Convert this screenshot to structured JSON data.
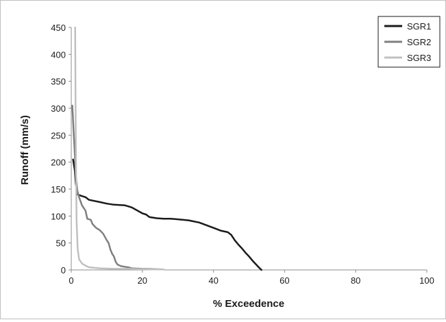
{
  "chart_data": {
    "type": "line",
    "title": "",
    "xlabel": "% Exceedence",
    "ylabel": "Runoff (mm/s)",
    "xlim": [
      0,
      100
    ],
    "ylim": [
      0,
      450
    ],
    "x_ticks": [
      "0",
      "20",
      "40",
      "60",
      "80",
      "100"
    ],
    "y_ticks": [
      "0",
      "50",
      "100",
      "150",
      "200",
      "250",
      "300",
      "350",
      "400",
      "450"
    ],
    "grid": false,
    "legend_position": "top-right",
    "series": [
      {
        "name": "SGR1",
        "color": "#1a1a1a",
        "points": [
          [
            0.5,
            205
          ],
          [
            1,
            185
          ],
          [
            1.3,
            160
          ],
          [
            1.8,
            140
          ],
          [
            3,
            137
          ],
          [
            4,
            135
          ],
          [
            5,
            130
          ],
          [
            8,
            126
          ],
          [
            10,
            123
          ],
          [
            12,
            121
          ],
          [
            15,
            120
          ],
          [
            17,
            116
          ],
          [
            20,
            105
          ],
          [
            21,
            103
          ],
          [
            22,
            98
          ],
          [
            24,
            96
          ],
          [
            26,
            95
          ],
          [
            28,
            95
          ],
          [
            30,
            94
          ],
          [
            33,
            92
          ],
          [
            36,
            88
          ],
          [
            38,
            83
          ],
          [
            40,
            78
          ],
          [
            42,
            73
          ],
          [
            44,
            70
          ],
          [
            45,
            65
          ],
          [
            46,
            55
          ],
          [
            47,
            47
          ],
          [
            48,
            40
          ],
          [
            49,
            32
          ],
          [
            50,
            25
          ],
          [
            51,
            17
          ],
          [
            52,
            10
          ],
          [
            53,
            3
          ],
          [
            53.5,
            0
          ]
        ]
      },
      {
        "name": "SGR2",
        "color": "#7f7f7f",
        "points": [
          [
            0.3,
            305
          ],
          [
            0.6,
            265
          ],
          [
            1,
            215
          ],
          [
            1.3,
            175
          ],
          [
            1.7,
            148
          ],
          [
            2.2,
            135
          ],
          [
            3,
            120
          ],
          [
            4,
            110
          ],
          [
            4.5,
            95
          ],
          [
            5.5,
            93
          ],
          [
            6,
            85
          ],
          [
            7,
            78
          ],
          [
            8,
            74
          ],
          [
            9,
            67
          ],
          [
            10,
            55
          ],
          [
            10.5,
            50
          ],
          [
            11,
            38
          ],
          [
            11.5,
            30
          ],
          [
            12,
            25
          ],
          [
            12.5,
            15
          ],
          [
            13,
            10
          ],
          [
            14,
            7
          ],
          [
            15,
            6
          ],
          [
            16,
            5
          ],
          [
            17,
            3
          ],
          [
            20,
            2
          ],
          [
            26,
            1
          ]
        ]
      },
      {
        "name": "SGR3",
        "color": "#c0c0c0",
        "points": [
          [
            1.1,
            450
          ],
          [
            1.2,
            330
          ],
          [
            1.3,
            230
          ],
          [
            1.4,
            150
          ],
          [
            1.5,
            90
          ],
          [
            1.8,
            40
          ],
          [
            2.2,
            20
          ],
          [
            3,
            12
          ],
          [
            4,
            8
          ],
          [
            5,
            5
          ],
          [
            8,
            3
          ],
          [
            12,
            2
          ],
          [
            16,
            2
          ],
          [
            22,
            1
          ],
          [
            26,
            1
          ]
        ]
      }
    ]
  }
}
